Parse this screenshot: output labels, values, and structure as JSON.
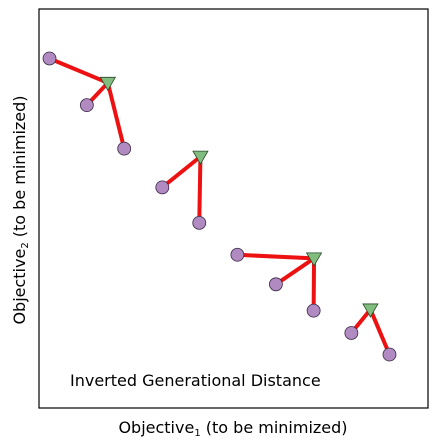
{
  "chart_data": {
    "type": "scatter",
    "title": "",
    "xlabel": "Objective",
    "xlabel_sub": "1",
    "xlabel_suffix": " (to be minimized)",
    "ylabel": "Objective",
    "ylabel_sub": "2",
    "ylabel_suffix": " (to be minimized)",
    "annotation": "Inverted Generational Distance",
    "xlim": [
      0,
      10
    ],
    "ylim": [
      0,
      10
    ],
    "grid": false,
    "colors": {
      "reference": "#80bd7e",
      "solution": "#b08ac0",
      "link": "#ee1111"
    },
    "reference_points": [
      {
        "x": 1.77,
        "y": 8.15
      },
      {
        "x": 4.15,
        "y": 6.3
      },
      {
        "x": 7.07,
        "y": 3.75
      },
      {
        "x": 8.52,
        "y": 2.47
      }
    ],
    "solution_points": [
      {
        "x": 0.27,
        "y": 8.76
      },
      {
        "x": 1.23,
        "y": 7.59
      },
      {
        "x": 2.19,
        "y": 6.5
      },
      {
        "x": 3.17,
        "y": 5.53
      },
      {
        "x": 4.12,
        "y": 4.64
      },
      {
        "x": 5.1,
        "y": 3.84
      },
      {
        "x": 6.09,
        "y": 3.1
      },
      {
        "x": 7.06,
        "y": 2.44
      },
      {
        "x": 8.03,
        "y": 1.88
      },
      {
        "x": 9.01,
        "y": 1.34
      }
    ],
    "links": [
      {
        "ref": 0,
        "sol": 0
      },
      {
        "ref": 0,
        "sol": 1
      },
      {
        "ref": 0,
        "sol": 2
      },
      {
        "ref": 1,
        "sol": 3
      },
      {
        "ref": 1,
        "sol": 4
      },
      {
        "ref": 2,
        "sol": 5
      },
      {
        "ref": 2,
        "sol": 6
      },
      {
        "ref": 2,
        "sol": 7
      },
      {
        "ref": 3,
        "sol": 8
      },
      {
        "ref": 3,
        "sol": 9
      }
    ]
  }
}
